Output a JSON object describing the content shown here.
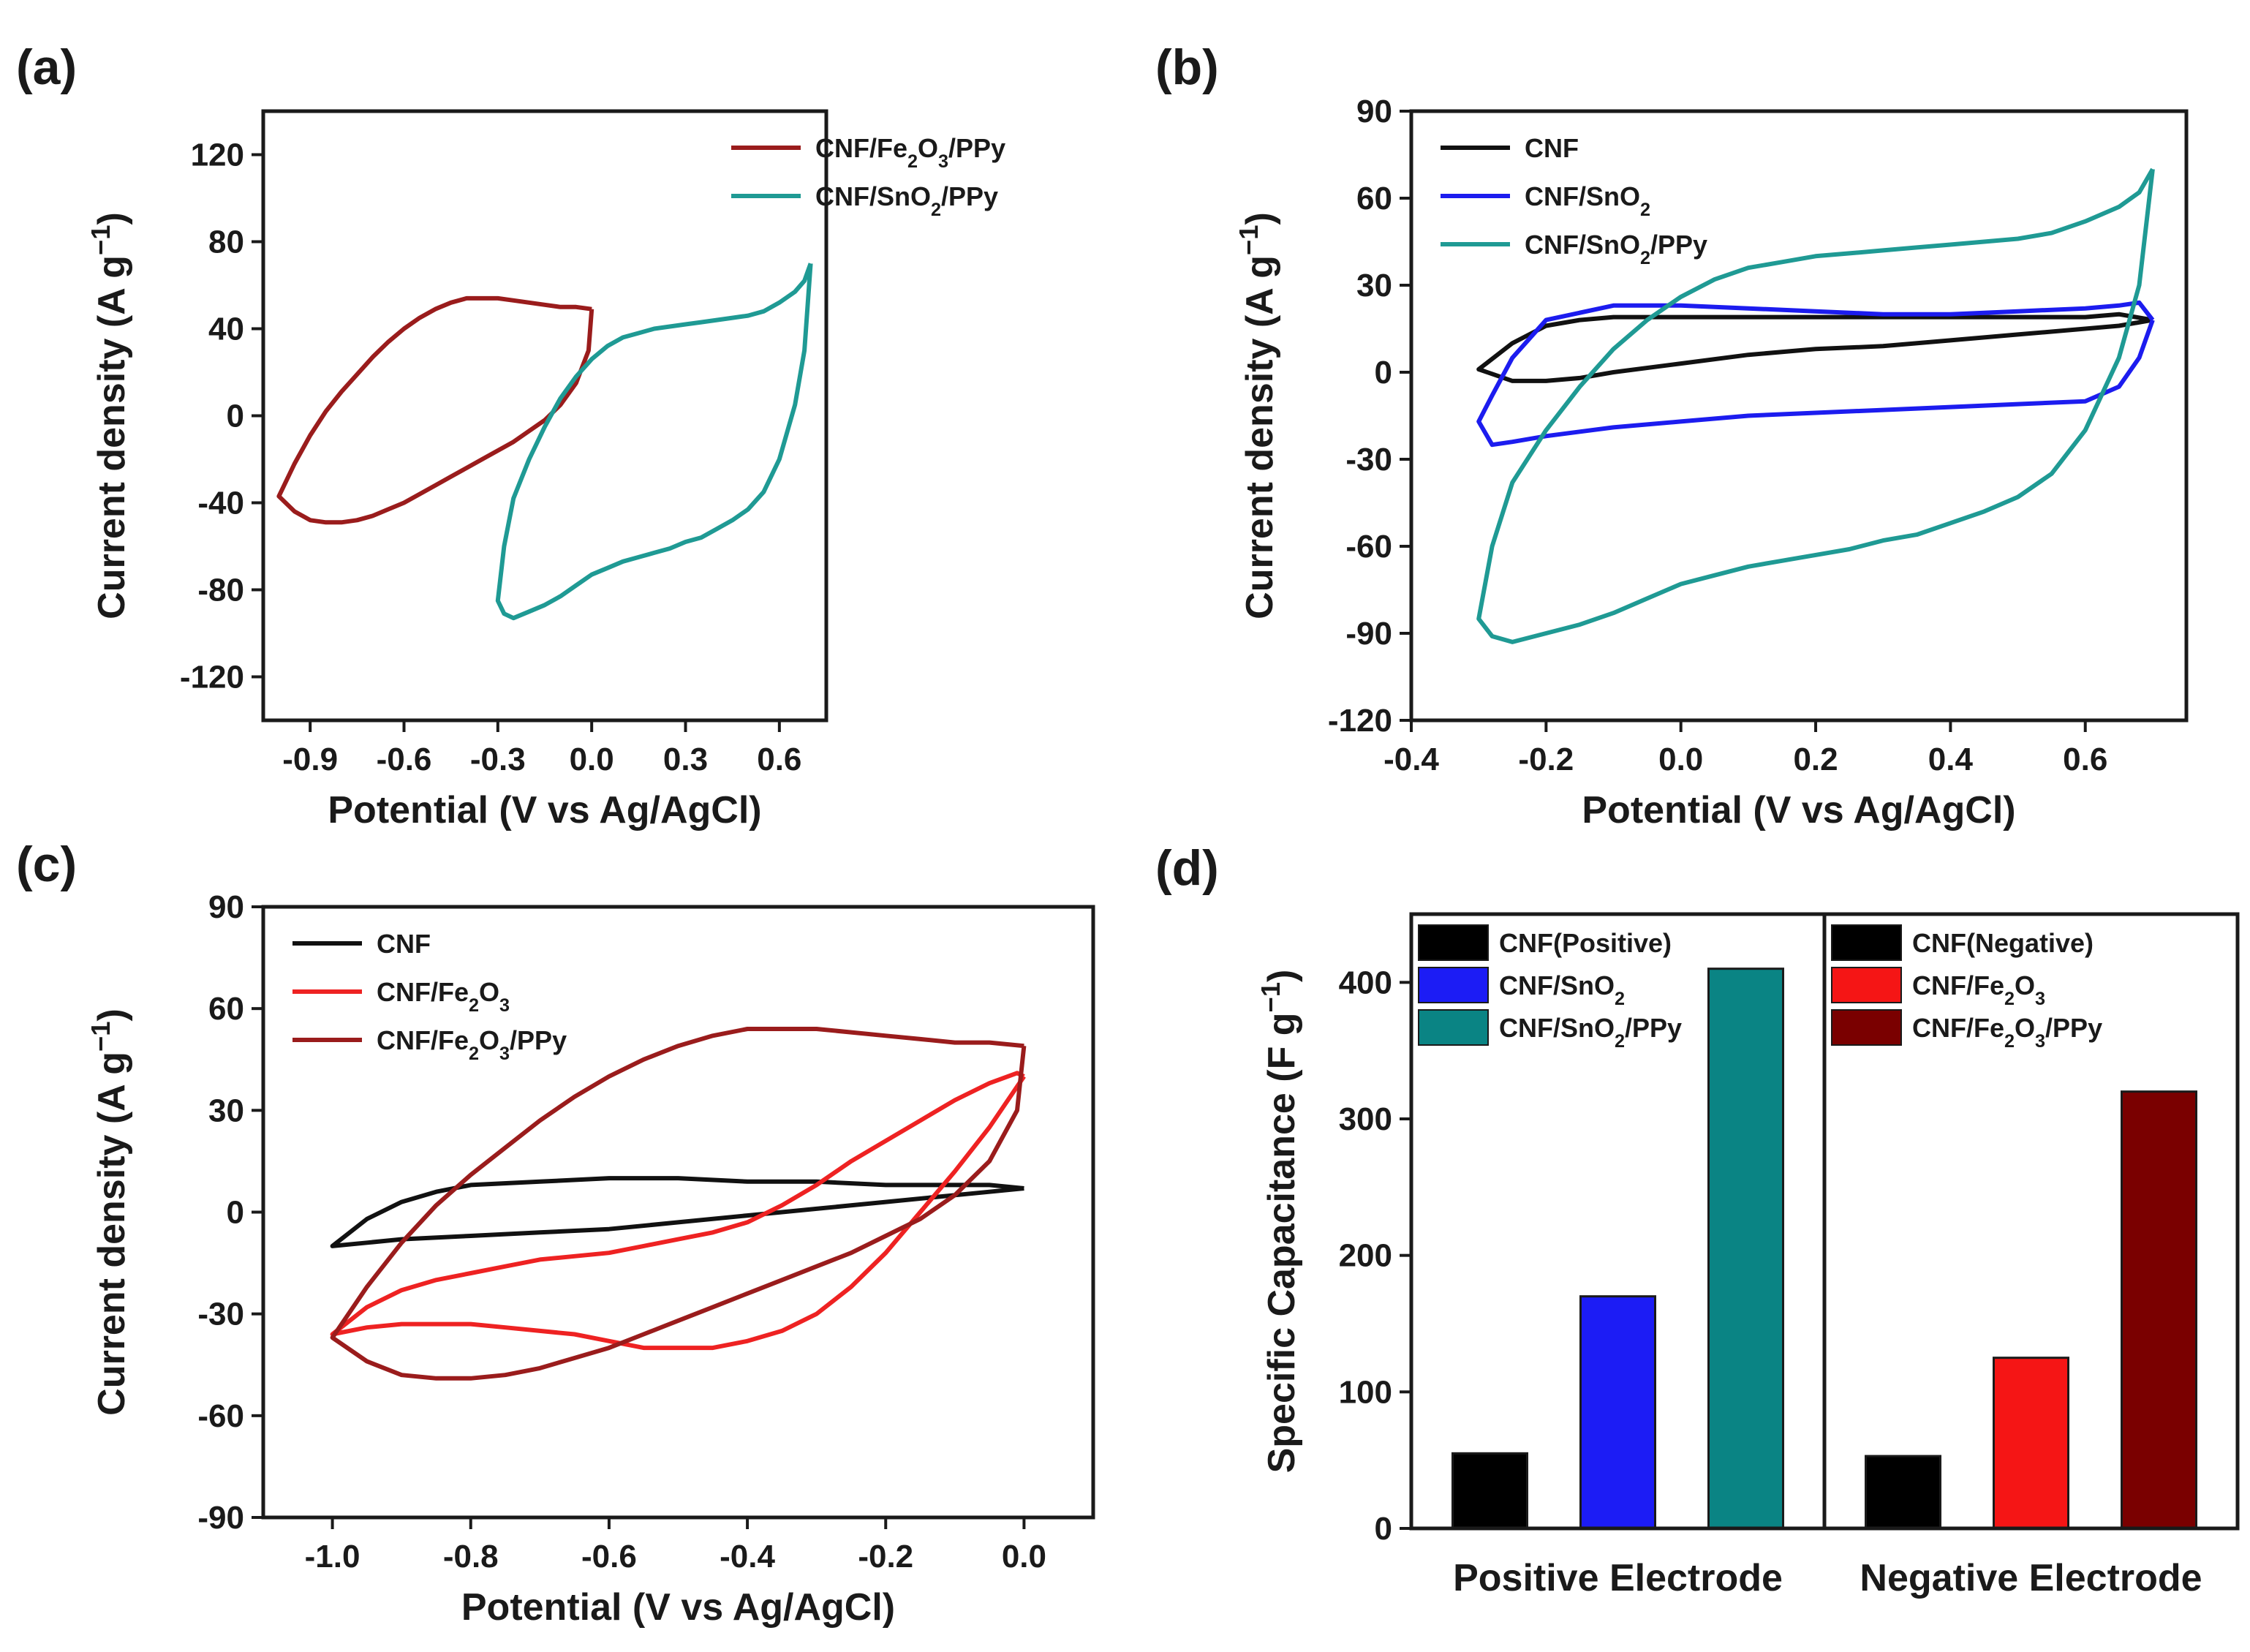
{
  "chart_data": [
    {
      "id": "a",
      "type": "line",
      "panel_label": "(a)",
      "xlabel": "Potential (V vs Ag/AgCl)",
      "ylabel": "Current density (A g",
      "ylabel_sup": "−1",
      "ylabel_tail": ")",
      "xlim": [
        -1.05,
        0.75
      ],
      "ylim": [
        -140,
        140
      ],
      "xticks": [
        -0.9,
        -0.6,
        -0.3,
        0.0,
        0.3,
        0.6
      ],
      "xtick_labels": [
        "-0.9",
        "-0.6",
        "-0.3",
        "0.0",
        "0.3",
        "0.6"
      ],
      "yticks": [
        120,
        80,
        40,
        0,
        -40,
        -80,
        -120
      ],
      "ytick_labels": [
        "120",
        "80",
        "40",
        "0",
        "-40",
        "-80",
        "-120"
      ],
      "legend": [
        {
          "parts": [
            [
              "CNF/Fe",
              ""
            ],
            [
              "2",
              "sub"
            ],
            [
              "O",
              ""
            ],
            [
              "3",
              "sub"
            ],
            [
              "/PPy",
              ""
            ]
          ],
          "color": "#9a1c1c"
        },
        {
          "parts": [
            [
              "CNF/SnO",
              ""
            ],
            [
              "2",
              "sub"
            ],
            [
              "/PPy",
              ""
            ]
          ],
          "color": "#1f9a94"
        }
      ],
      "series": [
        {
          "name": "CNF/Fe2O3/PPy",
          "color": "#9a1c1c",
          "x": [
            0.0,
            -0.05,
            -0.1,
            -0.15,
            -0.2,
            -0.25,
            -0.3,
            -0.35,
            -0.4,
            -0.45,
            -0.5,
            -0.55,
            -0.6,
            -0.65,
            -0.7,
            -0.75,
            -0.8,
            -0.85,
            -0.9,
            -0.95,
            -1.0,
            -0.95,
            -0.9,
            -0.85,
            -0.8,
            -0.75,
            -0.7,
            -0.65,
            -0.6,
            -0.55,
            -0.5,
            -0.45,
            -0.4,
            -0.35,
            -0.3,
            -0.25,
            -0.2,
            -0.15,
            -0.1,
            -0.05,
            -0.01,
            0.0
          ],
          "y": [
            49,
            50,
            50,
            51,
            52,
            53,
            54,
            54,
            54,
            52,
            49,
            45,
            40,
            34,
            27,
            19,
            11,
            2,
            -9,
            -22,
            -37,
            -44,
            -48,
            -49,
            -49,
            -48,
            -46,
            -43,
            -40,
            -36,
            -32,
            -28,
            -24,
            -20,
            -16,
            -12,
            -7,
            -2,
            5,
            15,
            30,
            49
          ]
        },
        {
          "name": "CNF/SnO2/PPy",
          "color": "#1f9a94",
          "x": [
            0.7,
            0.68,
            0.65,
            0.6,
            0.55,
            0.5,
            0.45,
            0.4,
            0.35,
            0.3,
            0.25,
            0.2,
            0.15,
            0.1,
            0.05,
            0.0,
            -0.05,
            -0.1,
            -0.15,
            -0.2,
            -0.25,
            -0.28,
            -0.3,
            -0.28,
            -0.25,
            -0.2,
            -0.15,
            -0.1,
            -0.05,
            0.0,
            0.05,
            0.1,
            0.15,
            0.2,
            0.25,
            0.3,
            0.35,
            0.4,
            0.45,
            0.5,
            0.55,
            0.6,
            0.65,
            0.68,
            0.7
          ],
          "y": [
            70,
            30,
            5,
            -20,
            -35,
            -43,
            -48,
            -52,
            -56,
            -58,
            -61,
            -63,
            -65,
            -67,
            -70,
            -73,
            -78,
            -83,
            -87,
            -90,
            -93,
            -91,
            -85,
            -60,
            -38,
            -20,
            -5,
            8,
            18,
            26,
            32,
            36,
            38,
            40,
            41,
            42,
            43,
            44,
            45,
            46,
            48,
            52,
            57,
            62,
            70
          ]
        }
      ]
    },
    {
      "id": "b",
      "type": "line",
      "panel_label": "(b)",
      "xlabel": "Potential (V vs Ag/AgCl)",
      "ylabel": "Current density (A g",
      "ylabel_sup": "−1",
      "ylabel_tail": ")",
      "xlim": [
        -0.4,
        0.75
      ],
      "ylim": [
        -120,
        90
      ],
      "xticks": [
        -0.4,
        -0.2,
        0.0,
        0.2,
        0.4,
        0.6
      ],
      "xtick_labels": [
        "-0.4",
        "-0.2",
        "0.0",
        "0.2",
        "0.4",
        "0.6"
      ],
      "yticks": [
        90,
        60,
        30,
        0,
        -30,
        -60,
        -90,
        -120
      ],
      "ytick_labels": [
        "90",
        "60",
        "30",
        "0",
        "-30",
        "-60",
        "-90",
        "-120"
      ],
      "legend": [
        {
          "parts": [
            [
              "CNF",
              ""
            ]
          ],
          "color": "#111111"
        },
        {
          "parts": [
            [
              "CNF/SnO",
              ""
            ],
            [
              "2",
              "sub"
            ]
          ],
          "color": "#1c1cef"
        },
        {
          "parts": [
            [
              "CNF/SnO",
              ""
            ],
            [
              "2",
              "sub"
            ],
            [
              "/PPy",
              ""
            ]
          ],
          "color": "#1f9a94"
        }
      ],
      "series": [
        {
          "name": "CNF",
          "color": "#111111",
          "x": [
            0.7,
            0.65,
            0.6,
            0.5,
            0.4,
            0.3,
            0.2,
            0.1,
            0.0,
            -0.1,
            -0.15,
            -0.2,
            -0.25,
            -0.3,
            -0.25,
            -0.2,
            -0.15,
            -0.1,
            0.0,
            0.1,
            0.2,
            0.3,
            0.4,
            0.5,
            0.6,
            0.65,
            0.7
          ],
          "y": [
            18,
            16,
            15,
            13,
            11,
            9,
            8,
            6,
            3,
            0,
            -2,
            -3,
            -3,
            1,
            10,
            16,
            18,
            19,
            19,
            19,
            19,
            19,
            19,
            19,
            19,
            20,
            18
          ]
        },
        {
          "name": "CNF/SnO2",
          "color": "#1c1cef",
          "x": [
            0.7,
            0.68,
            0.65,
            0.6,
            0.5,
            0.4,
            0.3,
            0.2,
            0.1,
            0.0,
            -0.1,
            -0.2,
            -0.25,
            -0.28,
            -0.3,
            -0.28,
            -0.25,
            -0.2,
            -0.1,
            0.0,
            0.1,
            0.2,
            0.3,
            0.4,
            0.5,
            0.6,
            0.65,
            0.68,
            0.7
          ],
          "y": [
            18,
            5,
            -5,
            -10,
            -11,
            -12,
            -13,
            -14,
            -15,
            -17,
            -19,
            -22,
            -24,
            -25,
            -17,
            -8,
            5,
            18,
            23,
            23,
            22,
            21,
            20,
            20,
            21,
            22,
            23,
            24,
            18
          ]
        },
        {
          "name": "CNF/SnO2/PPy",
          "color": "#1f9a94",
          "x": [
            0.7,
            0.68,
            0.65,
            0.6,
            0.55,
            0.5,
            0.45,
            0.4,
            0.35,
            0.3,
            0.25,
            0.2,
            0.15,
            0.1,
            0.05,
            0.0,
            -0.05,
            -0.1,
            -0.15,
            -0.2,
            -0.25,
            -0.28,
            -0.3,
            -0.28,
            -0.25,
            -0.2,
            -0.15,
            -0.1,
            -0.05,
            0.0,
            0.05,
            0.1,
            0.15,
            0.2,
            0.25,
            0.3,
            0.35,
            0.4,
            0.45,
            0.5,
            0.55,
            0.6,
            0.65,
            0.68,
            0.7
          ],
          "y": [
            70,
            30,
            5,
            -20,
            -35,
            -43,
            -48,
            -52,
            -56,
            -58,
            -61,
            -63,
            -65,
            -67,
            -70,
            -73,
            -78,
            -83,
            -87,
            -90,
            -93,
            -91,
            -85,
            -60,
            -38,
            -20,
            -5,
            8,
            18,
            26,
            32,
            36,
            38,
            40,
            41,
            42,
            43,
            44,
            45,
            46,
            48,
            52,
            57,
            62,
            70
          ]
        }
      ]
    },
    {
      "id": "c",
      "type": "line",
      "panel_label": "(c)",
      "xlabel": "Potential (V vs Ag/AgCl)",
      "ylabel": "Current density (A g",
      "ylabel_sup": "−1",
      "ylabel_tail": ")",
      "xlim": [
        -1.1,
        0.1
      ],
      "ylim": [
        -90,
        90
      ],
      "xticks": [
        -1.0,
        -0.8,
        -0.6,
        -0.4,
        -0.2,
        0.0
      ],
      "xtick_labels": [
        "-1.0",
        "-0.8",
        "-0.6",
        "-0.4",
        "-0.2",
        "0.0"
      ],
      "yticks": [
        90,
        60,
        30,
        0,
        -30,
        -60,
        -90
      ],
      "ytick_labels": [
        "90",
        "60",
        "30",
        "0",
        "-30",
        "-60",
        "-90"
      ],
      "legend": [
        {
          "parts": [
            [
              "CNF",
              ""
            ]
          ],
          "color": "#111111"
        },
        {
          "parts": [
            [
              "CNF/Fe",
              ""
            ],
            [
              "2",
              "sub"
            ],
            [
              "O",
              ""
            ],
            [
              "3",
              "sub"
            ]
          ],
          "color": "#ee2222"
        },
        {
          "parts": [
            [
              "CNF/Fe",
              ""
            ],
            [
              "2",
              "sub"
            ],
            [
              "O",
              ""
            ],
            [
              "3",
              "sub"
            ],
            [
              "/PPy",
              ""
            ]
          ],
          "color": "#9a1c1c"
        }
      ],
      "series": [
        {
          "name": "CNF",
          "color": "#111111",
          "x": [
            0.0,
            -0.05,
            -0.1,
            -0.2,
            -0.3,
            -0.4,
            -0.5,
            -0.6,
            -0.7,
            -0.8,
            -0.9,
            -0.95,
            -1.0,
            -0.95,
            -0.9,
            -0.85,
            -0.8,
            -0.7,
            -0.6,
            -0.5,
            -0.4,
            -0.3,
            -0.2,
            -0.1,
            -0.05,
            0.0
          ],
          "y": [
            7,
            6,
            5,
            3,
            1,
            -1,
            -3,
            -5,
            -6,
            -7,
            -8,
            -9,
            -10,
            -2,
            3,
            6,
            8,
            9,
            10,
            10,
            9,
            9,
            8,
            8,
            8,
            7
          ]
        },
        {
          "name": "CNF/Fe2O3",
          "color": "#ee2222",
          "x": [
            0.0,
            -0.05,
            -0.1,
            -0.15,
            -0.2,
            -0.25,
            -0.3,
            -0.35,
            -0.4,
            -0.45,
            -0.5,
            -0.55,
            -0.6,
            -0.65,
            -0.7,
            -0.75,
            -0.8,
            -0.85,
            -0.9,
            -0.95,
            -1.0,
            -0.95,
            -0.9,
            -0.85,
            -0.8,
            -0.75,
            -0.7,
            -0.65,
            -0.6,
            -0.55,
            -0.5,
            -0.45,
            -0.4,
            -0.35,
            -0.3,
            -0.25,
            -0.2,
            -0.15,
            -0.1,
            -0.05,
            -0.01,
            0.0
          ],
          "y": [
            40,
            25,
            12,
            0,
            -12,
            -22,
            -30,
            -35,
            -38,
            -40,
            -40,
            -40,
            -38,
            -36,
            -35,
            -34,
            -33,
            -33,
            -33,
            -34,
            -36,
            -28,
            -23,
            -20,
            -18,
            -16,
            -14,
            -13,
            -12,
            -10,
            -8,
            -6,
            -3,
            2,
            8,
            15,
            21,
            27,
            33,
            38,
            41,
            40
          ]
        },
        {
          "name": "CNF/Fe2O3/PPy",
          "color": "#9a1c1c",
          "x": [
            0.0,
            -0.05,
            -0.1,
            -0.15,
            -0.2,
            -0.25,
            -0.3,
            -0.35,
            -0.4,
            -0.45,
            -0.5,
            -0.55,
            -0.6,
            -0.65,
            -0.7,
            -0.75,
            -0.8,
            -0.85,
            -0.9,
            -0.95,
            -1.0,
            -0.95,
            -0.9,
            -0.85,
            -0.8,
            -0.75,
            -0.7,
            -0.65,
            -0.6,
            -0.55,
            -0.5,
            -0.45,
            -0.4,
            -0.35,
            -0.3,
            -0.25,
            -0.2,
            -0.15,
            -0.1,
            -0.05,
            -0.01,
            0.0
          ],
          "y": [
            49,
            50,
            50,
            51,
            52,
            53,
            54,
            54,
            54,
            52,
            49,
            45,
            40,
            34,
            27,
            19,
            11,
            2,
            -9,
            -22,
            -37,
            -44,
            -48,
            -49,
            -49,
            -48,
            -46,
            -43,
            -40,
            -36,
            -32,
            -28,
            -24,
            -20,
            -16,
            -12,
            -7,
            -2,
            5,
            15,
            30,
            49
          ]
        }
      ]
    },
    {
      "id": "d",
      "type": "bar",
      "panel_label": "(d)",
      "ylabel": "Specific Capacitance (F g",
      "ylabel_sup": "−1",
      "ylabel_tail": ")",
      "ylim": [
        0,
        450
      ],
      "yticks": [
        0,
        100,
        200,
        300,
        400
      ],
      "ytick_labels": [
        "0",
        "100",
        "200",
        "300",
        "400"
      ],
      "categories": [
        "Positive Electrode",
        "Negative Electrode"
      ],
      "groups": [
        {
          "category": "Positive Electrode",
          "bars": [
            {
              "name": "CNF(Positive)",
              "value": 55,
              "color": "#000000"
            },
            {
              "name": "CNF/SnO2",
              "value": 170,
              "color": "#1c1cf5"
            },
            {
              "name": "CNF/SnO2/PPy",
              "value": 410,
              "color": "#0a8484"
            }
          ]
        },
        {
          "category": "Negative Electrode",
          "bars": [
            {
              "name": "CNF(Negative)",
              "value": 53,
              "color": "#000000"
            },
            {
              "name": "CNF/Fe2O3",
              "value": 125,
              "color": "#f51515"
            },
            {
              "name": "CNF/Fe2O3/PPy",
              "value": 320,
              "color": "#7a0000"
            }
          ]
        }
      ],
      "legend": [
        [
          {
            "parts": [
              [
                "CNF(Positive)",
                ""
              ]
            ],
            "color": "#000000"
          },
          {
            "parts": [
              [
                "CNF/SnO",
                ""
              ],
              [
                "2",
                "sub"
              ]
            ],
            "color": "#1c1cf5"
          },
          {
            "parts": [
              [
                "CNF/SnO",
                ""
              ],
              [
                "2",
                "sub"
              ],
              [
                "/PPy",
                ""
              ]
            ],
            "color": "#0a8484"
          }
        ],
        [
          {
            "parts": [
              [
                "CNF(Negative)",
                ""
              ]
            ],
            "color": "#000000"
          },
          {
            "parts": [
              [
                "CNF/Fe",
                ""
              ],
              [
                "2",
                "sub"
              ],
              [
                "O",
                ""
              ],
              [
                "3",
                "sub"
              ]
            ],
            "color": "#f51515"
          },
          {
            "parts": [
              [
                "CNF/Fe",
                ""
              ],
              [
                "2",
                "sub"
              ],
              [
                "O",
                ""
              ],
              [
                "3",
                "sub"
              ],
              [
                "/PPy",
                ""
              ]
            ],
            "color": "#7a0000"
          }
        ]
      ]
    }
  ]
}
